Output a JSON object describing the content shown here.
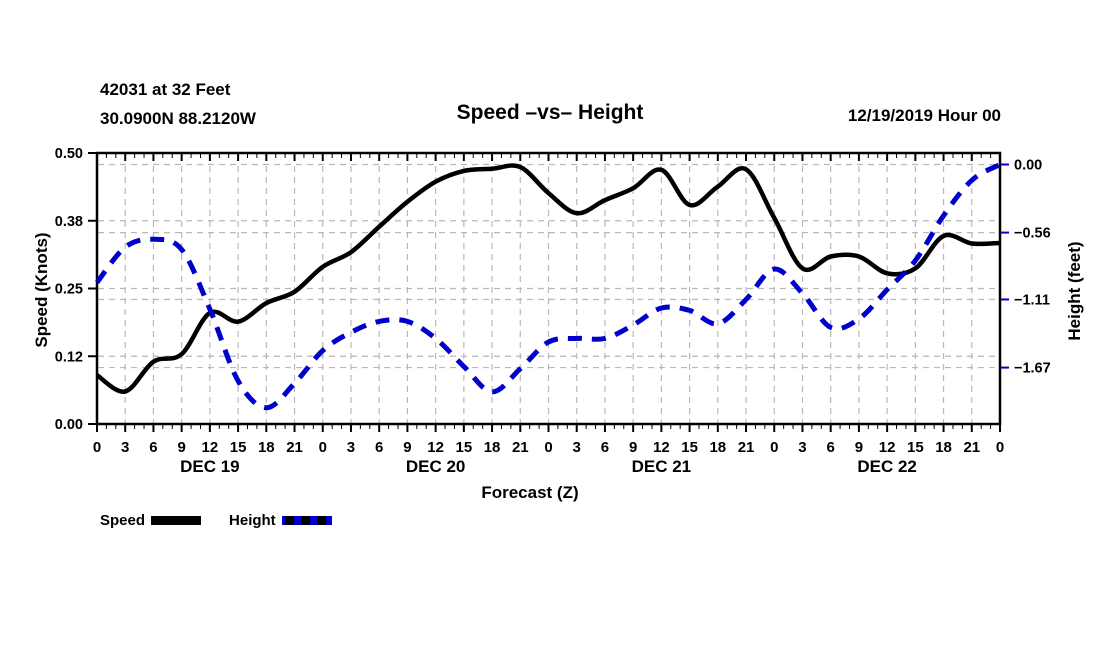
{
  "header": {
    "station": "42031 at 32 Feet",
    "coordinates": "30.0900N 88.2120W",
    "title": "Speed –vs– Height",
    "run_date": "12/19/2019 Hour 00"
  },
  "legend": {
    "speed_label": "Speed",
    "height_label": "Height"
  },
  "colors": {
    "speed": "#000000",
    "height": "#0000cc",
    "grid": "#b8b8b8",
    "frame": "#000000"
  },
  "chart_data": {
    "type": "line",
    "title": "Speed –vs– Height",
    "xlabel": "Forecast (Z)",
    "x_hours": [
      0,
      3,
      6,
      9,
      12,
      15,
      18,
      21,
      24,
      27,
      30,
      33,
      36,
      39,
      42,
      45,
      48,
      51,
      54,
      57,
      60,
      63,
      66,
      69,
      72,
      75,
      78,
      81,
      84,
      87,
      90,
      93,
      96
    ],
    "series": [
      {
        "name": "Speed",
        "axis": "left",
        "color": "#000000",
        "style": "solid",
        "values": [
          0.09,
          0.06,
          0.115,
          0.129,
          0.205,
          0.189,
          0.223,
          0.244,
          0.29,
          0.317,
          0.364,
          0.41,
          0.447,
          0.467,
          0.471,
          0.474,
          0.426,
          0.389,
          0.413,
          0.435,
          0.469,
          0.404,
          0.438,
          0.47,
          0.38,
          0.287,
          0.309,
          0.309,
          0.278,
          0.287,
          0.347,
          0.333,
          0.334
        ]
      },
      {
        "name": "Height",
        "axis": "right",
        "color": "#0000cc",
        "style": "dashed",
        "values": [
          -0.97,
          -0.68,
          -0.615,
          -0.7,
          -1.19,
          -1.78,
          -2.0,
          -1.8,
          -1.53,
          -1.38,
          -1.29,
          -1.29,
          -1.43,
          -1.66,
          -1.87,
          -1.68,
          -1.46,
          -1.43,
          -1.43,
          -1.32,
          -1.18,
          -1.2,
          -1.31,
          -1.11,
          -0.86,
          -1.06,
          -1.34,
          -1.27,
          -1.03,
          -0.79,
          -0.42,
          -0.13,
          0.0
        ]
      }
    ],
    "left_axis": {
      "label": "Speed (Knots)",
      "range": [
        0,
        0.5
      ],
      "ticks": [
        0,
        0.125,
        0.25,
        0.375,
        0.5
      ],
      "tick_labels": [
        "0.00",
        "0.12",
        "0.25",
        "0.38",
        "0.50"
      ]
    },
    "right_axis": {
      "label": "Height (feet)",
      "ticks": [
        0,
        -0.56,
        -1.11,
        -1.67
      ],
      "tick_labels": [
        "0.00",
        "−0.56",
        "−1.11",
        "−1.67"
      ]
    },
    "x_axis": {
      "label": "Forecast (Z)",
      "range_hours": [
        0,
        96
      ],
      "major_tick_step_hours": 3,
      "minor_tick_step_hours": 1,
      "hour_label_cycle": [
        "0",
        "3",
        "6",
        "9",
        "12",
        "15",
        "18",
        "21"
      ],
      "day_labels": [
        "DEC 19",
        "DEC 20",
        "DEC 21",
        "DEC 22"
      ]
    },
    "grid": true,
    "legend_position": "bottom-left"
  }
}
